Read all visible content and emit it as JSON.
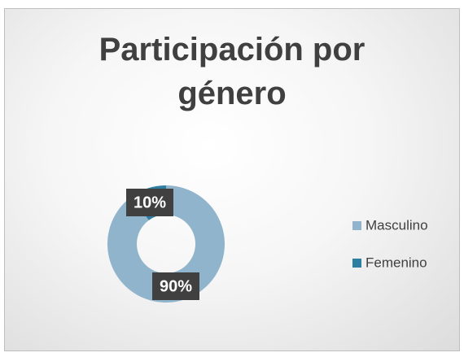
{
  "chart_data": {
    "type": "donut",
    "title": "Participación por género",
    "categories": [
      "Masculino",
      "Femenino"
    ],
    "values": [
      90,
      10
    ],
    "value_labels": [
      "90%",
      "10%"
    ],
    "colors": [
      "#8fb4cc",
      "#2e7ea1"
    ],
    "legend": "right"
  }
}
